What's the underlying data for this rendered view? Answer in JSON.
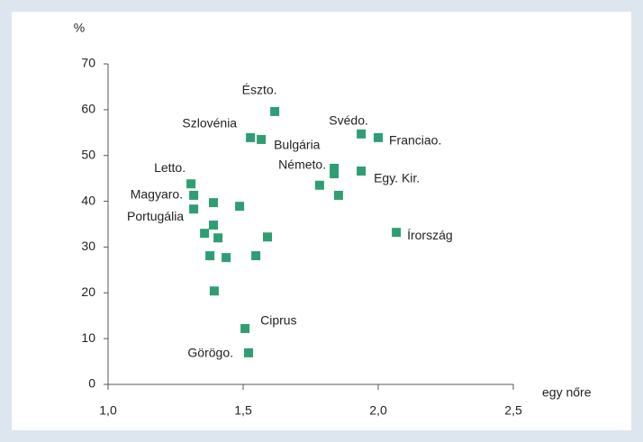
{
  "chart_data": {
    "type": "scatter",
    "x_label": "egy nőre",
    "y_label": "%",
    "x": [
      1.617,
      1.527,
      1.567,
      1.937,
      2.0,
      1.837,
      1.837,
      1.937,
      1.783,
      1.853,
      1.307,
      1.317,
      1.317,
      1.39,
      1.487,
      1.39,
      1.407,
      1.357,
      1.59,
      2.067,
      1.377,
      1.437,
      1.547,
      1.393,
      1.507,
      1.52
    ],
    "values": [
      59.6,
      53.9,
      53.5,
      54.7,
      53.9,
      47.2,
      46.0,
      46.6,
      43.5,
      41.3,
      43.8,
      41.3,
      38.3,
      39.7,
      38.9,
      34.8,
      32.0,
      33.0,
      32.2,
      33.2,
      28.1,
      27.7,
      28.1,
      20.4,
      12.2,
      6.9
    ],
    "point_labels": [
      "Észto.",
      "Szlovénia",
      "Bulgária",
      "Svédo.",
      "Franciao.",
      "Németo.",
      null,
      "Egy. Kir.",
      null,
      null,
      "Letto.",
      "Magyaro.",
      "Portugália",
      null,
      null,
      null,
      null,
      null,
      null,
      "Írország",
      null,
      null,
      null,
      null,
      "Ciprus",
      "Görögo."
    ],
    "color": "#2f9e72",
    "xlim": [
      1.0,
      2.5
    ],
    "xticks": [
      {
        "value": 1.0,
        "label": "1,0"
      },
      {
        "value": 1.5,
        "label": "1,5"
      },
      {
        "value": 2.0,
        "label": "2,0"
      },
      {
        "value": 2.5,
        "label": "2,5"
      }
    ],
    "ylim": [
      0,
      70
    ],
    "yticks": [
      0,
      10,
      20,
      30,
      40,
      50,
      60,
      70
    ],
    "grid": false
  }
}
